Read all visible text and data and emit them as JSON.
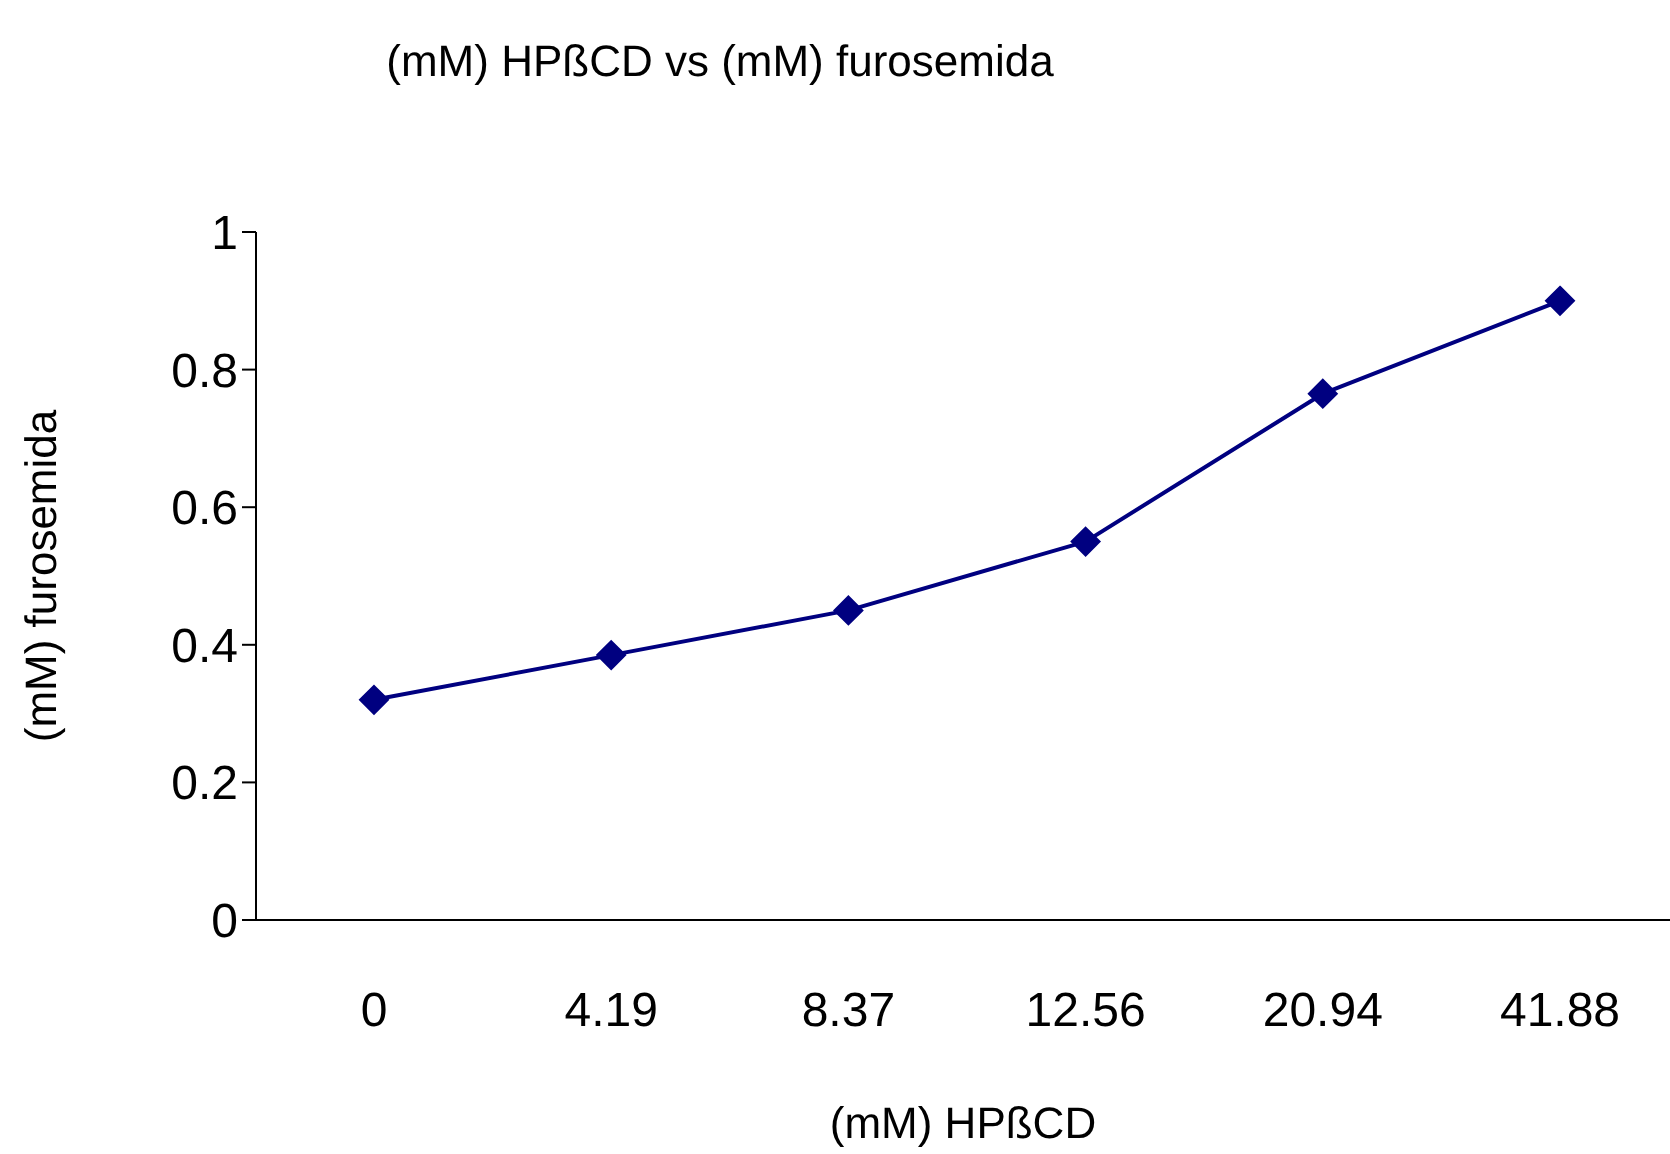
{
  "chart_data": {
    "type": "line",
    "title": "(mM) HPßCD vs (mM) furosemida",
    "xlabel": "(mM) HPßCD",
    "ylabel": "(mM) furosemida",
    "categories": [
      "0",
      "4.19",
      "8.37",
      "12.56",
      "20.94",
      "41.88"
    ],
    "series": [
      {
        "color": "#000080",
        "values": [
          0.32,
          0.385,
          0.45,
          0.55,
          0.765,
          0.9
        ]
      }
    ],
    "ylim": [
      0,
      1
    ],
    "yticks": [
      0,
      0.2,
      0.4,
      0.6,
      0.8,
      1
    ],
    "marker": "diamond",
    "line_style": "solid"
  }
}
